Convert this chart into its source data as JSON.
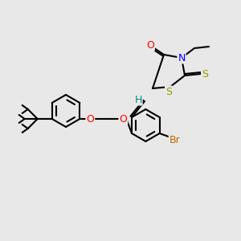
{
  "background_color": "#e8e8e8",
  "bond_color": "#000000",
  "atom_colors": {
    "O": "#ff0000",
    "N": "#0000ff",
    "S_yellow": "#999900",
    "Br": "#cc6600",
    "H": "#008888",
    "C": "#000000"
  },
  "figsize": [
    3.0,
    3.0
  ],
  "dpi": 100
}
